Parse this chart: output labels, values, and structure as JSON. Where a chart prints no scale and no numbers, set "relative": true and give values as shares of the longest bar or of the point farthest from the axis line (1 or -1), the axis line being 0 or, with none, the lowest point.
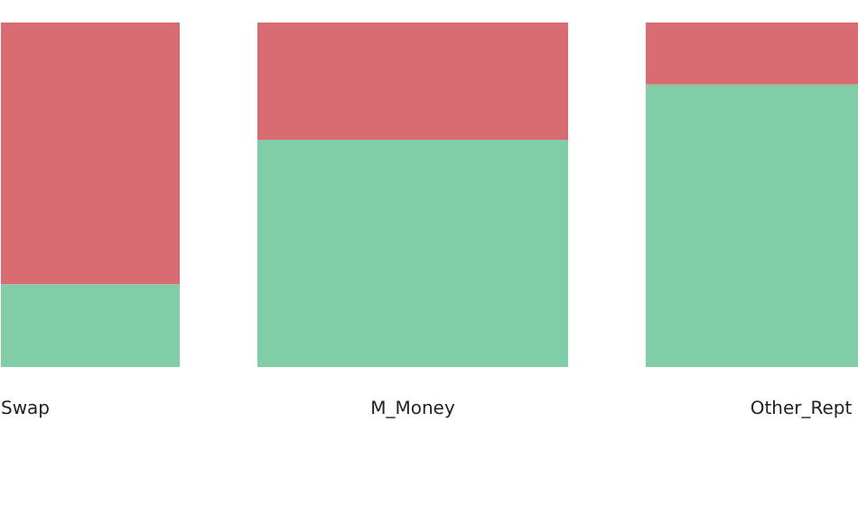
{
  "chart_data": {
    "type": "bar",
    "stacked": true,
    "relative": true,
    "categories": [
      "Swap",
      "M_Money",
      "Other_Rept"
    ],
    "series": [
      {
        "color": "#80cda7",
        "values": [
          0.24,
          0.66,
          0.82
        ]
      },
      {
        "color": "#d96b73",
        "values": [
          0.76,
          0.34,
          0.18
        ]
      }
    ],
    "grid": false
  }
}
